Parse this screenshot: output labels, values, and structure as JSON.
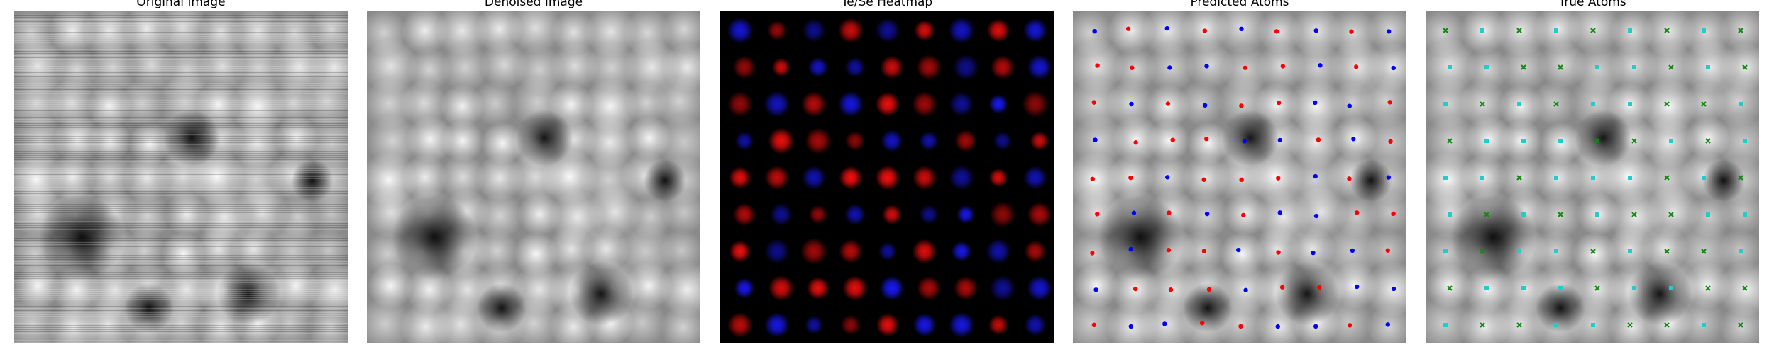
{
  "figure": {
    "panels": [
      {
        "title": "Original Image",
        "kind": "noisy-grayscale"
      },
      {
        "title": "Denoised Image",
        "kind": "smooth-grayscale"
      },
      {
        "title": "Te/Se Heatmap",
        "kind": "heatmap",
        "colors": {
          "te": "#ff1010",
          "se": "#1a1aff",
          "background": "#000000"
        }
      },
      {
        "title": "Predicted Atoms",
        "kind": "predicted",
        "marker_colors": {
          "te": "#ff0000",
          "se": "#0000ff"
        }
      },
      {
        "title": "True Atoms",
        "kind": "true",
        "marker_colors": {
          "te": "#22cccc",
          "se": "#118811"
        }
      }
    ],
    "lattice": {
      "rows": 9,
      "cols": 9,
      "site_types": [
        [
          "se",
          "te",
          "se",
          "te",
          "se",
          "te",
          "se",
          "te",
          "se"
        ],
        [
          "te",
          "te",
          "se",
          "se",
          "te",
          "te",
          "se",
          "te",
          "se"
        ],
        [
          "te",
          "se",
          "te",
          "se",
          "te",
          "te",
          "se",
          "se",
          "te"
        ],
        [
          "se",
          "te",
          "te",
          "te",
          "se",
          "se",
          "te",
          "se",
          "te"
        ],
        [
          "te",
          "te",
          "se",
          "te",
          "te",
          "te",
          "se",
          "te",
          "se"
        ],
        [
          "te",
          "se",
          "te",
          "se",
          "te",
          "se",
          "se",
          "te",
          "te"
        ],
        [
          "te",
          "se",
          "te",
          "te",
          "se",
          "te",
          "se",
          "se",
          "te"
        ],
        [
          "se",
          "te",
          "te",
          "te",
          "se",
          "te",
          "te",
          "se",
          "se"
        ],
        [
          "te",
          "se",
          "se",
          "te",
          "te",
          "se",
          "se",
          "te",
          "se"
        ]
      ]
    }
  }
}
